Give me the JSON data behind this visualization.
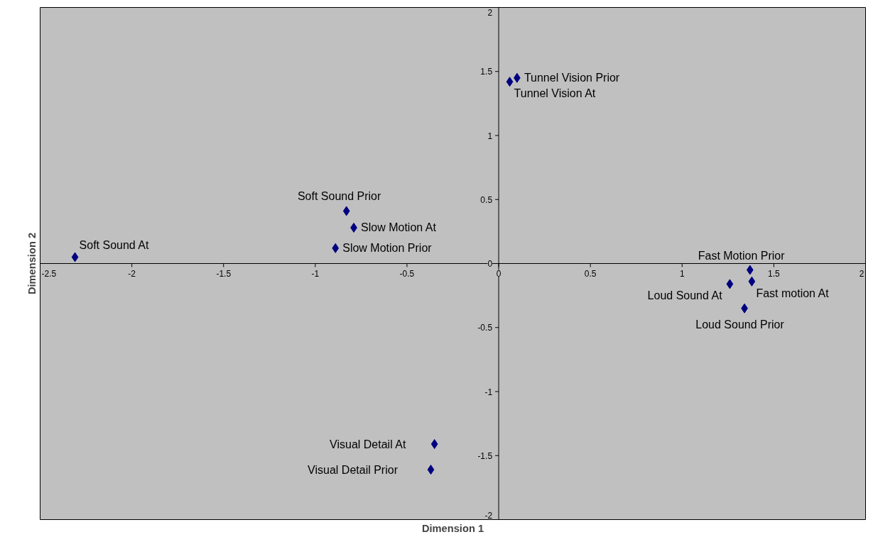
{
  "chart_data": {
    "type": "scatter",
    "xlabel": "Dimension 1",
    "ylabel": "Dimension 2",
    "xlim": [
      -2.5,
      2
    ],
    "ylim": [
      -2,
      2
    ],
    "xticks": [
      -2.5,
      -2,
      -1.5,
      -1,
      -0.5,
      0,
      0.5,
      1,
      1.5,
      2
    ],
    "yticks": [
      -2,
      -1.5,
      -1,
      -0.5,
      0,
      0.5,
      1,
      1.5,
      2
    ],
    "grid": false,
    "marker": "diamond",
    "series": [
      {
        "color": "#000080",
        "x": [
          -2.31,
          -0.83,
          -0.79,
          -0.89,
          0.1,
          0.06,
          1.37,
          1.38,
          1.26,
          1.34,
          -0.35,
          -0.37
        ],
        "values": [
          0.05,
          0.41,
          0.28,
          0.12,
          1.45,
          1.42,
          -0.05,
          -0.14,
          -0.16,
          -0.35,
          -1.41,
          -1.61
        ]
      }
    ],
    "annotations": [
      {
        "text": "Soft Sound At",
        "x": -2.31,
        "y": 0.05
      },
      {
        "text": "Soft Sound Prior",
        "x": -0.83,
        "y": 0.41
      },
      {
        "text": "Slow Motion At",
        "x": -0.79,
        "y": 0.28
      },
      {
        "text": "Slow Motion Prior",
        "x": -0.89,
        "y": 0.12
      },
      {
        "text": "Tunnel Vision Prior",
        "x": 0.1,
        "y": 1.45
      },
      {
        "text": "Tunnel Vision At",
        "x": 0.06,
        "y": 1.42
      },
      {
        "text": "Fast Motion Prior",
        "x": 1.37,
        "y": -0.05
      },
      {
        "text": "Fast motion At",
        "x": 1.38,
        "y": -0.14
      },
      {
        "text": "Loud Sound At",
        "x": 1.26,
        "y": -0.16
      },
      {
        "text": "Loud Sound Prior",
        "x": 1.34,
        "y": -0.35
      },
      {
        "text": "Visual Detail At",
        "x": -0.35,
        "y": -1.41
      },
      {
        "text": "Visual Detail Prior",
        "x": -0.37,
        "y": -1.61
      }
    ]
  }
}
